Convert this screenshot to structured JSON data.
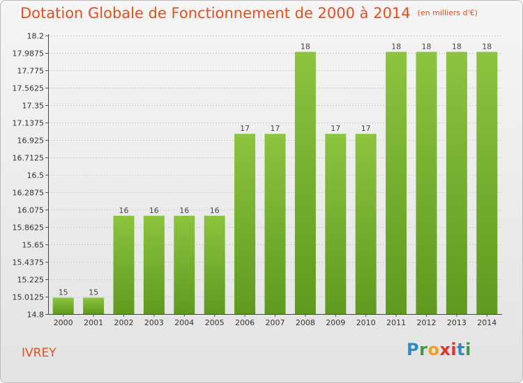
{
  "chart_data": {
    "type": "bar",
    "title": "Dotation Globale de Fonctionnement de 2000 à 2014",
    "subtitle": "(en milliers d'€)",
    "categories": [
      "2000",
      "2001",
      "2002",
      "2003",
      "2004",
      "2005",
      "2006",
      "2007",
      "2008",
      "2009",
      "2010",
      "2011",
      "2012",
      "2013",
      "2014"
    ],
    "values": [
      15,
      15,
      16,
      16,
      16,
      16,
      17,
      17,
      18,
      17,
      17,
      18,
      18,
      18,
      18
    ],
    "bar_labels": [
      "15",
      "15",
      "16",
      "16",
      "16",
      "16",
      "17",
      "17",
      "18",
      "17",
      "17",
      "18",
      "18",
      "18",
      "18"
    ],
    "ylim": [
      14.8,
      18.2
    ],
    "yticks": [
      14.8,
      15.0125,
      15.225,
      15.4375,
      15.65,
      15.8625,
      16.075,
      16.2875,
      16.5,
      16.7125,
      16.925,
      17.1375,
      17.35,
      17.5625,
      17.775,
      17.9875,
      18.2
    ],
    "ytick_labels": [
      "14.8",
      "15.0125",
      "15.225",
      "15.4375",
      "15.65",
      "15.8625",
      "16.075",
      "16.2875",
      "16.5",
      "16.7125",
      "16.925",
      "17.1375",
      "17.35",
      "17.5625",
      "17.775",
      "17.9875",
      "18.2"
    ],
    "grid": true,
    "bar_color": "#8cc43f",
    "bar_color_dark": "#5f9a1f",
    "xlabel": "",
    "ylabel": ""
  },
  "commune": "IVREY",
  "logo_letters": [
    "P",
    "r",
    "o",
    "x",
    "i",
    "t",
    "i"
  ]
}
